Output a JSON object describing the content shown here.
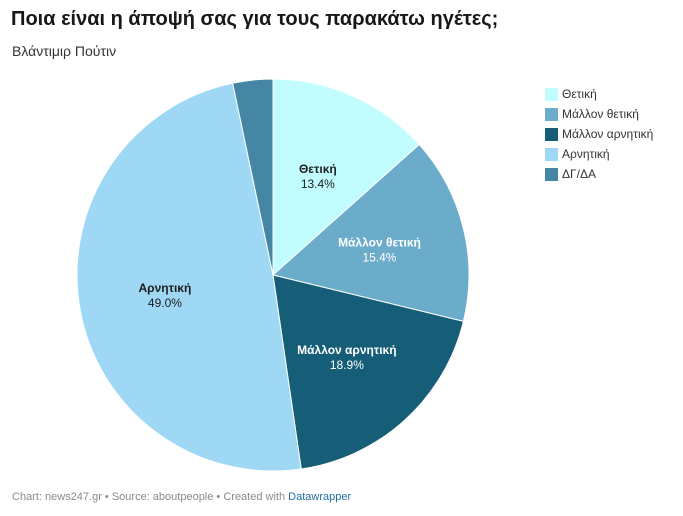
{
  "header": {
    "title": "Ποια είναι η άποψή σας για τους παρακάτω ηγέτες;",
    "subtitle": "Βλάντιμιρ Πούτιν"
  },
  "chart_data": {
    "type": "pie",
    "title": "Ποια είναι η άποψή σας για τους παρακάτω ηγέτες;",
    "subtitle": "Βλάντιμιρ Πούτιν",
    "start": "12 o'clock, clockwise",
    "legend_position": "right",
    "slices": [
      {
        "label": "Θετική",
        "value": 13.4,
        "value_label": "13.4%",
        "color": "#c1fdfe",
        "label_color": "#1d1d1d"
      },
      {
        "label": "Μάλλον θετική",
        "value": 15.4,
        "value_label": "15.4%",
        "color": "#6caccb",
        "label_color": "#ffffff"
      },
      {
        "label": "Μάλλον αρνητική",
        "value": 18.9,
        "value_label": "18.9%",
        "color": "#165e78",
        "label_color": "#ffffff"
      },
      {
        "label": "Αρνητική",
        "value": 49.0,
        "value_label": "49.0%",
        "color": "#9ed8f4",
        "label_color": "#1d1d1d"
      },
      {
        "label": "ΔΓ/ΔΑ",
        "value": 3.3,
        "value_label": "",
        "color": "#4586a4",
        "label_color": "#ffffff"
      }
    ]
  },
  "footer": {
    "prefix": "Chart: news247.gr • Source: aboutpeople • Created with ",
    "link": "Datawrapper"
  }
}
